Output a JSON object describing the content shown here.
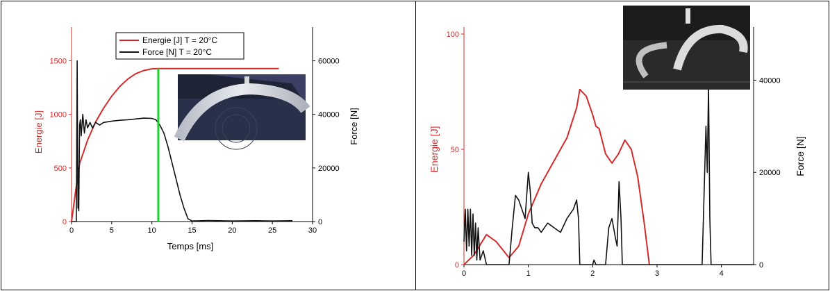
{
  "colors": {
    "energy": "#d42a2a",
    "force": "#111111",
    "marker": "#22cc33",
    "axis_left": "#d42a2a"
  },
  "chart_data": [
    {
      "type": "line",
      "title": "",
      "xlabel": "Temps  [ms]",
      "ylabel_left": "Energie [J]",
      "ylabel_right": "Force [N]",
      "xlim": [
        0,
        30
      ],
      "ylim_left": [
        0,
        1750
      ],
      "ylim_right": [
        0,
        70000
      ],
      "x_ticks": [
        "0",
        "5",
        "10",
        "15",
        "20",
        "25",
        "30"
      ],
      "y_left_ticks": [
        "0",
        "500",
        "1000",
        "1500"
      ],
      "y_right_ticks": [
        "0",
        "20000",
        "40000",
        "60000"
      ],
      "legend": [
        "Energie [J] T = 20°C",
        "Force [N] T = 20°C"
      ],
      "legend_position": "top-center",
      "marker_line_x": 10.8,
      "series": [
        {
          "name": "Energie [J] T = 20°C",
          "axis": "left",
          "x": [
            0,
            0.5,
            1,
            2,
            3,
            4,
            5,
            6,
            7,
            8,
            9,
            10,
            10.8,
            12,
            14,
            16,
            20,
            25.8
          ],
          "y": [
            0,
            280,
            540,
            760,
            930,
            1060,
            1170,
            1260,
            1330,
            1380,
            1410,
            1425,
            1428,
            1428,
            1428,
            1428,
            1428,
            1428
          ]
        },
        {
          "name": "Force [N] T = 20°C",
          "axis": "right",
          "x": [
            0,
            0.6,
            0.7,
            0.75,
            0.8,
            0.85,
            0.9,
            1.0,
            1.1,
            1.2,
            1.4,
            1.6,
            1.8,
            2.0,
            2.3,
            2.6,
            3.0,
            3.5,
            4,
            5,
            6,
            7,
            8,
            9,
            10,
            10.5,
            11,
            11.5,
            12,
            12.5,
            13,
            13.5,
            14,
            14.5,
            15,
            17,
            20,
            23,
            25,
            27.5
          ],
          "y": [
            0,
            0,
            60000,
            28000,
            5000,
            20000,
            4000,
            36000,
            38000,
            32000,
            40000,
            33000,
            38000,
            35000,
            37000,
            35000,
            37000,
            36000,
            37000,
            37500,
            37800,
            38000,
            38300,
            38600,
            38500,
            38000,
            36000,
            33000,
            28000,
            22000,
            16000,
            10000,
            5000,
            1000,
            200,
            400,
            200,
            300,
            200,
            300
          ]
        }
      ]
    },
    {
      "type": "line",
      "title": "",
      "xlabel": "",
      "ylabel_left": "Energie [J]",
      "ylabel_right": "Force [N]",
      "xlim": [
        0,
        4.5
      ],
      "ylim_left": [
        0,
        100
      ],
      "ylim_right": [
        0,
        50000
      ],
      "x_ticks": [
        "0",
        "1",
        "2",
        "3",
        "4"
      ],
      "y_left_ticks": [
        "0",
        "50",
        "100"
      ],
      "y_right_ticks": [
        "0",
        "20000",
        "40000"
      ],
      "series": [
        {
          "name": "Energie",
          "axis": "left",
          "x": [
            0,
            0.15,
            0.35,
            0.5,
            0.7,
            0.85,
            1.0,
            1.2,
            1.4,
            1.6,
            1.75,
            1.8,
            1.9,
            2.0,
            2.05,
            2.1,
            2.2,
            2.3,
            2.4,
            2.5,
            2.6,
            2.7,
            2.8,
            2.88
          ],
          "y": [
            0,
            4,
            13,
            10,
            3,
            8,
            22,
            35,
            45,
            55,
            68,
            76,
            73,
            65,
            60,
            59,
            48,
            44,
            48,
            54,
            50,
            38,
            18,
            0
          ]
        },
        {
          "name": "Force",
          "axis": "right",
          "x": [
            0,
            0.02,
            0.04,
            0.06,
            0.08,
            0.1,
            0.12,
            0.14,
            0.16,
            0.18,
            0.2,
            0.22,
            0.25,
            0.3,
            0.35,
            0.5,
            0.7,
            0.75,
            0.8,
            0.85,
            0.9,
            0.95,
            1.0,
            1.03,
            1.06,
            1.1,
            1.15,
            1.2,
            1.25,
            1.3,
            1.4,
            1.5,
            1.6,
            1.7,
            1.75,
            1.78,
            1.8,
            1.85,
            2.0,
            2.02,
            2.05,
            2.1,
            2.2,
            2.25,
            2.3,
            2.35,
            2.38,
            2.41,
            2.44,
            2.46,
            2.5,
            3.7,
            3.76,
            3.78,
            3.8,
            3.82,
            3.84,
            3.86,
            4.5
          ],
          "y": [
            5000,
            12000,
            3000,
            12000,
            4000,
            12000,
            2000,
            11000,
            2000,
            9000,
            1000,
            8000,
            1000,
            3000,
            0,
            0,
            0,
            8000,
            15000,
            14000,
            12000,
            10000,
            20000,
            16000,
            9000,
            8000,
            8000,
            7000,
            8000,
            9000,
            8000,
            7000,
            10000,
            12000,
            14000,
            10000,
            0,
            0,
            0,
            1000,
            0,
            0,
            0,
            8000,
            10000,
            6000,
            4000,
            18000,
            10000,
            0,
            0,
            0,
            30000,
            20000,
            39000,
            10000,
            0,
            0,
            0
          ]
        }
      ]
    }
  ],
  "photos": [
    {
      "icon": "impact-ring-photo-dark-blue"
    },
    {
      "icon": "impact-ring-photo-grayscale"
    }
  ]
}
